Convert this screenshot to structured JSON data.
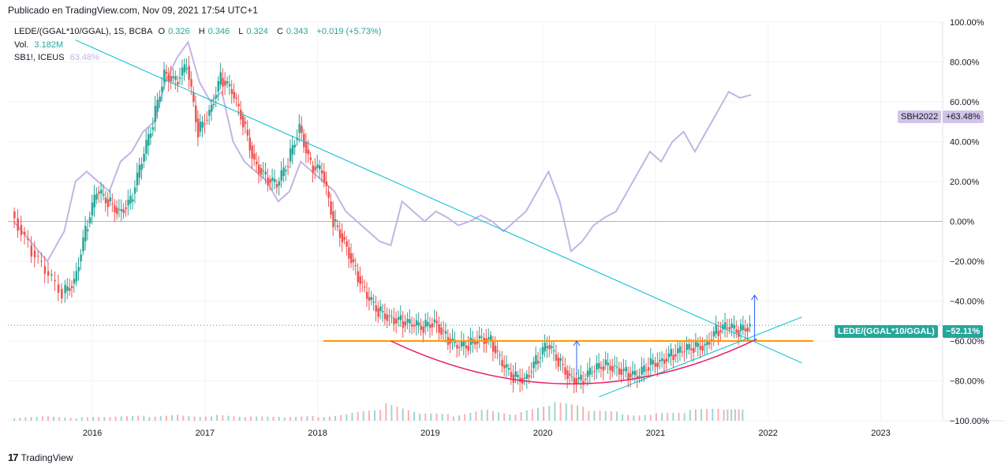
{
  "header": {
    "published": "Publicado en TradingView.com, Nov 09, 2021 17:54 UTC+1"
  },
  "legend": {
    "symbol": "LEDE/(GGAL*10/GGAL), 1S, BCBA",
    "o_label": "O",
    "o_val": "0.326",
    "h_label": "H",
    "h_val": "0.346",
    "l_label": "L",
    "l_val": "0.324",
    "c_label": "C",
    "c_val": "0.343",
    "change": "+0.019 (+5.73%)",
    "vol_label": "Vol.",
    "vol_val": "3.182M",
    "compare_label": "SB1!, ICEUS",
    "compare_val": "63.48%"
  },
  "tags": {
    "sbh_name": "SBH2022",
    "sbh_val": "+63.48%",
    "lede_name": "LEDE/(GGAL*10/GGAL)",
    "lede_val": "−52.11%"
  },
  "footer": {
    "brand": "TradingView",
    "logo": "17"
  },
  "colors": {
    "up": "#26a69a",
    "down": "#ef5350",
    "compare": "#c5b4e3",
    "trend": "#00bcd4",
    "support": "#ff9800",
    "cup": "#e91e63",
    "arrow": "#2962ff",
    "zero": "#b2b5be"
  },
  "chart_data": {
    "type": "line",
    "y_axis": {
      "unit": "%",
      "min": -100,
      "max": 100,
      "ticks": [
        "100.00%",
        "80.00%",
        "60.00%",
        "40.00%",
        "20.00%",
        "0.00%",
        "−20.00%",
        "−40.00%",
        "−60.00%",
        "−80.00%",
        "−100.00%"
      ]
    },
    "x_axis": {
      "min": 2015.25,
      "max": 2023.55,
      "ticks": [
        "2016",
        "2017",
        "2018",
        "2019",
        "2020",
        "2021",
        "2022",
        "2023"
      ]
    },
    "series": [
      {
        "name": "LEDE/(GGAL*10/GGAL)",
        "style": "candles",
        "points": [
          [
            2015.3,
            5
          ],
          [
            2015.45,
            -12
          ],
          [
            2015.6,
            -25
          ],
          [
            2015.75,
            -36
          ],
          [
            2015.85,
            -30
          ],
          [
            2015.95,
            -5
          ],
          [
            2016.05,
            15
          ],
          [
            2016.15,
            10
          ],
          [
            2016.25,
            5
          ],
          [
            2016.35,
            10
          ],
          [
            2016.45,
            30
          ],
          [
            2016.55,
            50
          ],
          [
            2016.65,
            75
          ],
          [
            2016.75,
            70
          ],
          [
            2016.85,
            78
          ],
          [
            2016.95,
            45
          ],
          [
            2017.05,
            55
          ],
          [
            2017.15,
            72
          ],
          [
            2017.25,
            65
          ],
          [
            2017.35,
            50
          ],
          [
            2017.45,
            30
          ],
          [
            2017.55,
            22
          ],
          [
            2017.65,
            18
          ],
          [
            2017.75,
            30
          ],
          [
            2017.85,
            48
          ],
          [
            2017.95,
            28
          ],
          [
            2018.05,
            25
          ],
          [
            2018.15,
            0
          ],
          [
            2018.25,
            -10
          ],
          [
            2018.35,
            -25
          ],
          [
            2018.45,
            -38
          ],
          [
            2018.55,
            -45
          ],
          [
            2018.65,
            -48
          ],
          [
            2018.75,
            -50
          ],
          [
            2018.85,
            -52
          ],
          [
            2018.95,
            -53
          ],
          [
            2019.05,
            -50
          ],
          [
            2019.15,
            -58
          ],
          [
            2019.25,
            -63
          ],
          [
            2019.35,
            -62
          ],
          [
            2019.45,
            -58
          ],
          [
            2019.55,
            -60
          ],
          [
            2019.65,
            -72
          ],
          [
            2019.75,
            -78
          ],
          [
            2019.85,
            -79
          ],
          [
            2019.95,
            -70
          ],
          [
            2020.05,
            -62
          ],
          [
            2020.15,
            -70
          ],
          [
            2020.25,
            -78
          ],
          [
            2020.35,
            -80
          ],
          [
            2020.45,
            -75
          ],
          [
            2020.55,
            -72
          ],
          [
            2020.65,
            -73
          ],
          [
            2020.75,
            -76
          ],
          [
            2020.85,
            -78
          ],
          [
            2020.95,
            -72
          ],
          [
            2021.05,
            -70
          ],
          [
            2021.15,
            -67
          ],
          [
            2021.25,
            -65
          ],
          [
            2021.35,
            -63
          ],
          [
            2021.45,
            -62
          ],
          [
            2021.55,
            -55
          ],
          [
            2021.65,
            -53
          ],
          [
            2021.75,
            -55
          ],
          [
            2021.85,
            -52
          ]
        ]
      },
      {
        "name": "SB1!, ICEUS",
        "style": "line",
        "points": [
          [
            2015.3,
            0
          ],
          [
            2015.45,
            -10
          ],
          [
            2015.6,
            -20
          ],
          [
            2015.75,
            -5
          ],
          [
            2015.85,
            20
          ],
          [
            2015.95,
            25
          ],
          [
            2016.05,
            20
          ],
          [
            2016.15,
            15
          ],
          [
            2016.25,
            30
          ],
          [
            2016.35,
            35
          ],
          [
            2016.45,
            45
          ],
          [
            2016.55,
            50
          ],
          [
            2016.65,
            70
          ],
          [
            2016.75,
            82
          ],
          [
            2016.85,
            90
          ],
          [
            2016.95,
            70
          ],
          [
            2017.05,
            60
          ],
          [
            2017.15,
            65
          ],
          [
            2017.25,
            40
          ],
          [
            2017.35,
            30
          ],
          [
            2017.45,
            25
          ],
          [
            2017.55,
            20
          ],
          [
            2017.65,
            10
          ],
          [
            2017.75,
            15
          ],
          [
            2017.85,
            30
          ],
          [
            2017.95,
            25
          ],
          [
            2018.05,
            20
          ],
          [
            2018.15,
            15
          ],
          [
            2018.25,
            5
          ],
          [
            2018.35,
            0
          ],
          [
            2018.45,
            -5
          ],
          [
            2018.55,
            -10
          ],
          [
            2018.65,
            -12
          ],
          [
            2018.75,
            10
          ],
          [
            2018.85,
            5
          ],
          [
            2018.95,
            0
          ],
          [
            2019.05,
            5
          ],
          [
            2019.15,
            2
          ],
          [
            2019.25,
            -2
          ],
          [
            2019.35,
            0
          ],
          [
            2019.45,
            3
          ],
          [
            2019.55,
            0
          ],
          [
            2019.65,
            -5
          ],
          [
            2019.75,
            0
          ],
          [
            2019.85,
            5
          ],
          [
            2019.95,
            15
          ],
          [
            2020.05,
            25
          ],
          [
            2020.15,
            10
          ],
          [
            2020.25,
            -15
          ],
          [
            2020.35,
            -10
          ],
          [
            2020.45,
            -2
          ],
          [
            2020.55,
            2
          ],
          [
            2020.65,
            5
          ],
          [
            2020.75,
            15
          ],
          [
            2020.85,
            25
          ],
          [
            2020.95,
            35
          ],
          [
            2021.05,
            30
          ],
          [
            2021.15,
            40
          ],
          [
            2021.25,
            45
          ],
          [
            2021.35,
            35
          ],
          [
            2021.45,
            45
          ],
          [
            2021.55,
            55
          ],
          [
            2021.65,
            65
          ],
          [
            2021.75,
            62
          ],
          [
            2021.85,
            63.48
          ]
        ]
      },
      {
        "name": "",
        "style": "volume",
        "points": [
          [
            2015.3,
            10
          ],
          [
            2015.6,
            12
          ],
          [
            2015.9,
            8
          ],
          [
            2016.2,
            10
          ],
          [
            2016.5,
            12
          ],
          [
            2016.8,
            15
          ],
          [
            2017.1,
            14
          ],
          [
            2017.4,
            10
          ],
          [
            2017.7,
            9
          ],
          [
            2018.0,
            12
          ],
          [
            2018.3,
            20
          ],
          [
            2018.6,
            40
          ],
          [
            2018.9,
            18
          ],
          [
            2019.2,
            15
          ],
          [
            2019.5,
            30
          ],
          [
            2019.8,
            20
          ],
          [
            2020.1,
            45
          ],
          [
            2020.4,
            30
          ],
          [
            2020.7,
            20
          ],
          [
            2021.0,
            18
          ],
          [
            2021.3,
            25
          ],
          [
            2021.6,
            30
          ],
          [
            2021.8,
            25
          ]
        ]
      }
    ],
    "annotations": [
      {
        "type": "trendline",
        "from": [
          2015.85,
          91
        ],
        "to": [
          2022.3,
          -71
        ]
      },
      {
        "type": "support",
        "from": [
          2018.05,
          -60
        ],
        "to": [
          2022.4,
          -60
        ]
      },
      {
        "type": "trendline",
        "from": [
          2020.5,
          -88
        ],
        "to": [
          2022.3,
          -48
        ]
      },
      {
        "type": "arc",
        "from": [
          2018.65,
          -60
        ],
        "to": [
          2021.9,
          -59
        ]
      },
      {
        "type": "arrow",
        "from": [
          2020.3,
          -77
        ],
        "to": [
          2020.3,
          -60
        ]
      },
      {
        "type": "arrow",
        "from": [
          2021.88,
          -60
        ],
        "to": [
          2021.88,
          -37
        ]
      }
    ]
  }
}
